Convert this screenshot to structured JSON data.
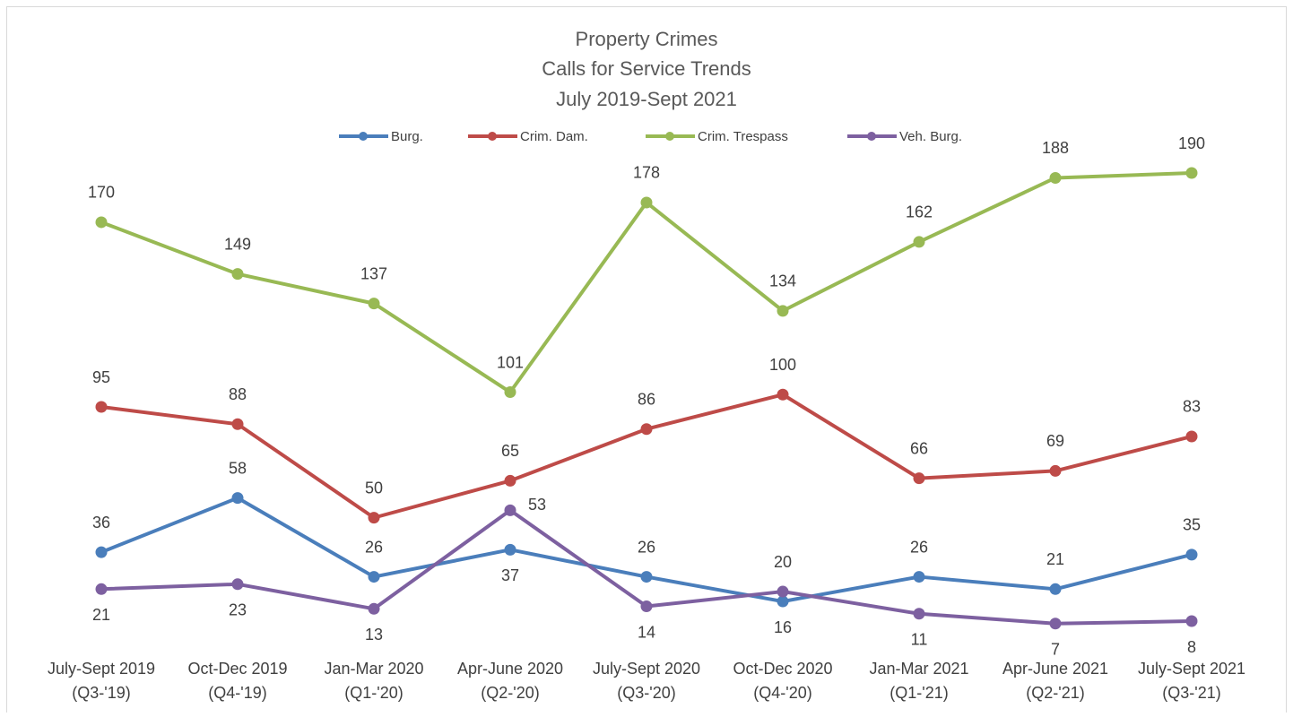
{
  "chart_data": {
    "type": "line",
    "title": [
      "Property Crimes",
      "Calls for Service Trends",
      "July 2019-Sept 2021"
    ],
    "categories": [
      "July-Sept 2019\n(Q3-'19)",
      "Oct-Dec 2019\n(Q4-'19)",
      "Jan-Mar 2020\n(Q1-'20)",
      "Apr-June 2020\n(Q2-'20)",
      "July-Sept 2020\n(Q3-'20)",
      "Oct-Dec 2020\n(Q4-'20)",
      "Jan-Mar 2021\n(Q1-'21)",
      "Apr-June 2021\n(Q2-'21)",
      "July-Sept 2021\n(Q3-'21)"
    ],
    "series": [
      {
        "name": "Burg.",
        "color": "#4a7ebb",
        "values": [
          36,
          58,
          26,
          37,
          26,
          16,
          26,
          21,
          35
        ]
      },
      {
        "name": "Crim. Dam.",
        "color": "#be4b48",
        "values": [
          95,
          88,
          50,
          65,
          86,
          100,
          66,
          69,
          83
        ]
      },
      {
        "name": "Crim. Trespass",
        "color": "#98b954",
        "values": [
          170,
          149,
          137,
          101,
          178,
          134,
          162,
          188,
          190
        ]
      },
      {
        "name": "Veh. Burg.",
        "color": "#7d60a0",
        "values": [
          21,
          23,
          13,
          53,
          14,
          20,
          11,
          7,
          8
        ]
      }
    ],
    "legend": "top"
  }
}
